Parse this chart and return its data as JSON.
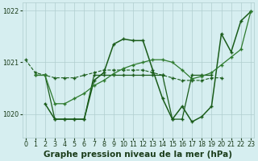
{
  "title": "Graphe pression niveau de la mer (hPa)",
  "series": [
    {
      "name": "s1_dashed",
      "x": [
        0,
        1,
        2,
        3,
        4,
        5,
        6,
        7,
        8,
        9,
        10,
        11,
        12,
        13,
        14,
        15,
        16,
        17,
        18,
        19,
        20
      ],
      "y": [
        1021.05,
        1020.8,
        1020.75,
        1020.7,
        1020.7,
        1020.7,
        1020.75,
        1020.8,
        1020.85,
        1020.85,
        1020.85,
        1020.85,
        1020.85,
        1020.8,
        1020.75,
        1020.7,
        1020.65,
        1020.65,
        1020.65,
        1020.7,
        1020.7
      ],
      "color": "#1a5c1a",
      "marker": "+",
      "linewidth": 0.8,
      "linestyle": "--",
      "ms": 3.0
    },
    {
      "name": "s2_flat",
      "x": [
        1,
        2,
        3,
        4,
        5,
        6,
        7,
        8,
        9,
        10,
        11,
        12,
        13,
        14,
        15,
        16,
        17,
        18,
        19
      ],
      "y": [
        1020.75,
        1020.75,
        1019.9,
        1019.9,
        1019.9,
        1019.9,
        1020.75,
        1020.75,
        1020.75,
        1020.75,
        1020.75,
        1020.75,
        1020.75,
        1020.75,
        1019.9,
        1019.9,
        1020.75,
        1020.75,
        1020.75
      ],
      "color": "#1a5c1a",
      "marker": "+",
      "linewidth": 0.9,
      "linestyle": "-",
      "ms": 3.0
    },
    {
      "name": "s3_spiky",
      "x": [
        2,
        3,
        4,
        5,
        6,
        7,
        8,
        9,
        10,
        11,
        12,
        13,
        14,
        15,
        16,
        17,
        18,
        19,
        20,
        21,
        22,
        23
      ],
      "y": [
        1020.2,
        1019.9,
        1019.9,
        1019.9,
        1019.9,
        1020.65,
        1020.8,
        1021.35,
        1021.45,
        1021.42,
        1021.42,
        1020.85,
        1020.3,
        1019.9,
        1020.15,
        1019.85,
        1019.95,
        1020.15,
        1021.55,
        1021.2,
        1021.8,
        1021.98
      ],
      "color": "#1a5c1a",
      "marker": "+",
      "linewidth": 1.1,
      "linestyle": "-",
      "ms": 3.0
    },
    {
      "name": "s4_rising",
      "x": [
        1,
        2,
        3,
        4,
        5,
        6,
        7,
        8,
        9,
        10,
        11,
        12,
        13,
        14,
        15,
        16,
        17,
        18,
        19,
        20,
        21,
        22,
        23
      ],
      "y": [
        1020.75,
        1020.75,
        1020.2,
        1020.2,
        1020.3,
        1020.4,
        1020.55,
        1020.65,
        1020.78,
        1020.88,
        1020.95,
        1021.0,
        1021.05,
        1021.05,
        1021.0,
        1020.85,
        1020.68,
        1020.73,
        1020.8,
        1020.95,
        1021.1,
        1021.25,
        1021.98
      ],
      "color": "#2d7a2d",
      "marker": "+",
      "linewidth": 0.9,
      "linestyle": "-",
      "ms": 3.0
    }
  ],
  "ylim": [
    1019.55,
    1022.15
  ],
  "yticks": [
    1020,
    1021,
    1022
  ],
  "xlim": [
    -0.3,
    23.3
  ],
  "xticks": [
    0,
    1,
    2,
    3,
    4,
    5,
    6,
    7,
    8,
    9,
    10,
    11,
    12,
    13,
    14,
    15,
    16,
    17,
    18,
    19,
    20,
    21,
    22,
    23
  ],
  "bg_color": "#d6eef0",
  "grid_color": "#b0cece",
  "text_color": "#1a3c1a",
  "title_fontsize": 7.5,
  "tick_fontsize": 5.8
}
